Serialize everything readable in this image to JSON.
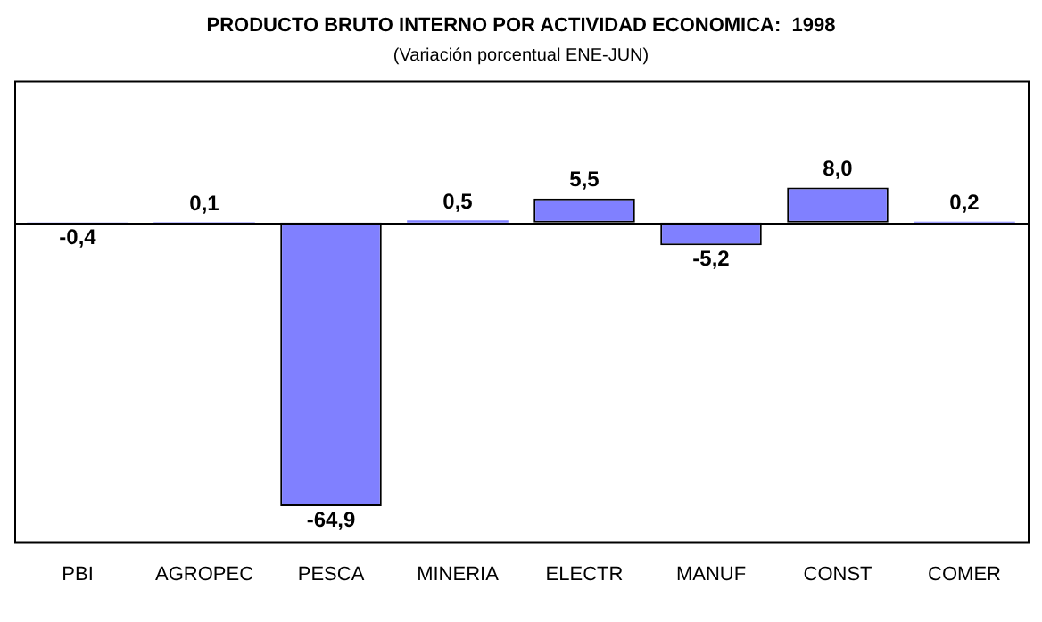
{
  "chart_data": {
    "type": "bar",
    "title": "PRODUCTO BRUTO INTERNO POR ACTIVIDAD ECONOMICA:  1998",
    "subtitle": "(Variación porcentual ENE-JUN)",
    "categories": [
      "PBI",
      "AGROPEC",
      "PESCA",
      "MINERIA",
      "ELECTR",
      "MANUF",
      "CONST",
      "COMER"
    ],
    "values": [
      -0.4,
      0.1,
      -64.9,
      0.5,
      5.5,
      -5.2,
      8.0,
      0.2
    ],
    "value_labels": [
      "-0,4",
      "0,1",
      "-64,9",
      "0,5",
      "5,5",
      "-5,2",
      "8,0",
      "0,2"
    ],
    "color": "#8080ff",
    "ylim": [
      -73,
      32.5
    ]
  }
}
